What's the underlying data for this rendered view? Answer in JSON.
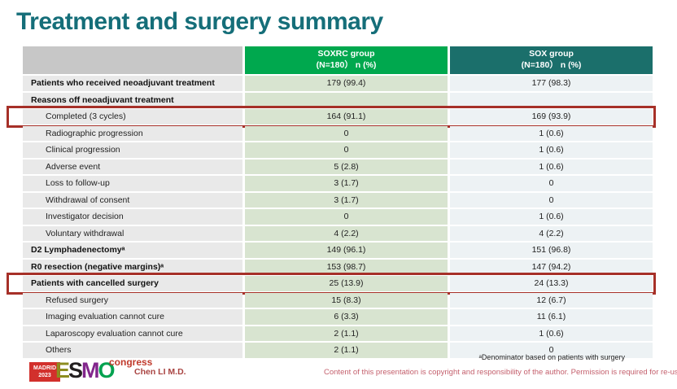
{
  "title": "Treatment and surgery summary",
  "colors": {
    "title_teal": "#156e79",
    "header_green": "#00a84e",
    "header_teal": "#1b6f6b",
    "header_gray": "#c7c7c7",
    "soxrc_column_bg": "#d8e4d0",
    "sox_column_bg": "#edf2f4",
    "label_column_bg": "#e9e9e9",
    "highlight_red": "#a63028",
    "copyright_rose": "#c4606d",
    "logo_red": "#d2302c"
  },
  "table": {
    "header": {
      "corner": "",
      "soxrc": {
        "name": "SOXRC group",
        "sub": "(N=180） n (%)"
      },
      "sox": {
        "name": "SOX group",
        "sub": "(N=180） n (%)"
      }
    },
    "rows": [
      {
        "label": "Patients who received neoadjuvant treatment",
        "soxrc": "179 (99.4)",
        "sox": "177 (98.3)"
      },
      {
        "label": "Reasons off neoadjuvant treatment",
        "soxrc": "",
        "sox": ""
      },
      {
        "label": "Completed (3 cycles)",
        "soxrc": "164 (91.1)",
        "sox": "169 (93.9)"
      },
      {
        "label": "Radiographic progression",
        "soxrc": "0",
        "sox": "1 (0.6)"
      },
      {
        "label": "Clinical progression",
        "soxrc": "0",
        "sox": "1 (0.6)"
      },
      {
        "label": "Adverse event",
        "soxrc": "5 (2.8)",
        "sox": "1 (0.6)"
      },
      {
        "label": "Loss to follow-up",
        "soxrc": "3 (1.7)",
        "sox": "0"
      },
      {
        "label": "Withdrawal of consent",
        "soxrc": "3 (1.7)",
        "sox": "0"
      },
      {
        "label": "Investigator decision",
        "soxrc": "0",
        "sox": "1 (0.6)"
      },
      {
        "label": "Voluntary withdrawal",
        "soxrc": "4 (2.2)",
        "sox": "4 (2.2)"
      },
      {
        "label": "D2 Lymphadenectomyᵃ",
        "soxrc": "149 (96.1)",
        "sox": "151 (96.8)"
      },
      {
        "label": "R0 resection (negative margins)ᵃ",
        "soxrc": "153 (98.7)",
        "sox": "147 (94.2)"
      },
      {
        "label": "Patients with cancelled surgery",
        "soxrc": "25 (13.9)",
        "sox": "24 (13.3)"
      },
      {
        "label": "Refused surgery",
        "soxrc": "15 (8.3)",
        "sox": "12 (6.7)"
      },
      {
        "label": "Imaging evaluation cannot cure",
        "soxrc": "6 (3.3)",
        "sox": "11 (6.1)"
      },
      {
        "label": "Laparoscopy evaluation cannot cure",
        "soxrc": "2 (1.1)",
        "sox": "1 (0.6)"
      },
      {
        "label": "Others",
        "soxrc": "2 (1.1)",
        "sox": "0"
      }
    ]
  },
  "footer": {
    "footnote": "ᵃDenominator based on patients with surgery",
    "presenter": "Chen LI M.D.",
    "copyright": "Content of this presentation is copyright and responsibility of the author. Permission is required for re-use.",
    "logo": {
      "city": "MADRID",
      "year": "2023",
      "e": "E",
      "s": "S",
      "m": "M",
      "o": "O",
      "congress": "congress"
    }
  }
}
